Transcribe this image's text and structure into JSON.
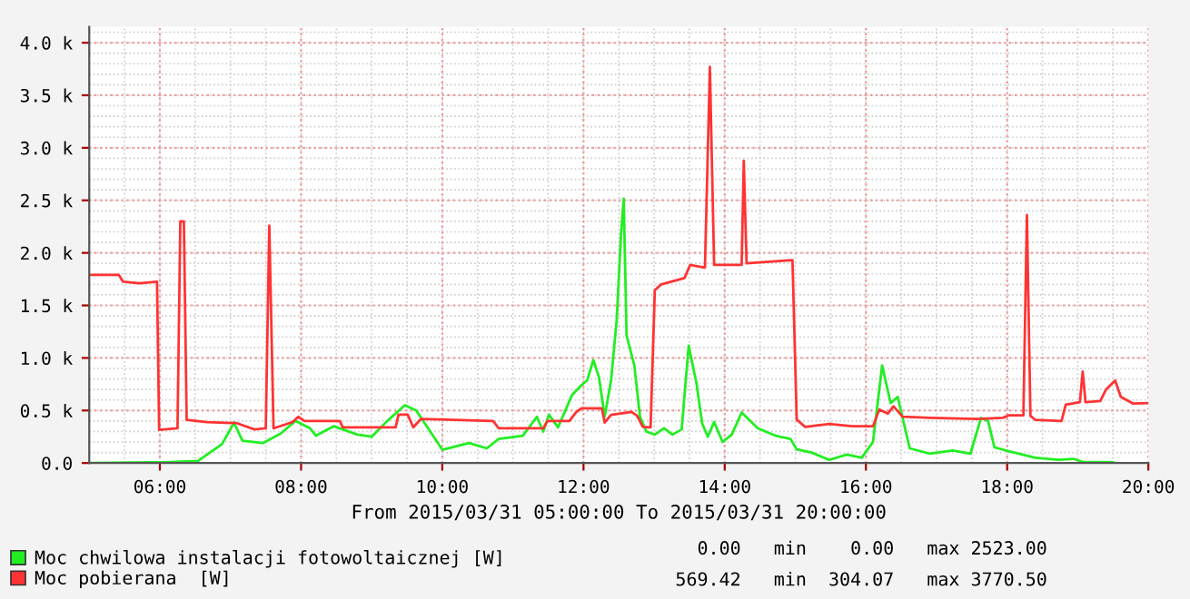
{
  "chart_data": {
    "type": "line",
    "xlabel": "From 2015/03/31 05:00:00 To 2015/03/31 20:00:00",
    "xlim": [
      5,
      20
    ],
    "xticks": [
      {
        "value": 6,
        "label": "06:00"
      },
      {
        "value": 8,
        "label": "08:00"
      },
      {
        "value": 10,
        "label": "10:00"
      },
      {
        "value": 12,
        "label": "12:00"
      },
      {
        "value": 14,
        "label": "14:00"
      },
      {
        "value": 16,
        "label": "16:00"
      },
      {
        "value": 18,
        "label": "18:00"
      },
      {
        "value": 20,
        "label": "20:00"
      }
    ],
    "ylim": [
      0,
      4150
    ],
    "yticks": [
      {
        "value": 0,
        "label": "0.0"
      },
      {
        "value": 500,
        "label": "0.5 k"
      },
      {
        "value": 1000,
        "label": "1.0 k"
      },
      {
        "value": 1500,
        "label": "1.5 k"
      },
      {
        "value": 2000,
        "label": "2.0 k"
      },
      {
        "value": 2500,
        "label": "2.5 k"
      },
      {
        "value": 3000,
        "label": "3.0 k"
      },
      {
        "value": 3500,
        "label": "3.5 k"
      },
      {
        "value": 4000,
        "label": "4.0 k"
      }
    ],
    "grid": true,
    "legend": "bottom left",
    "marker": "none",
    "line_style": "solid",
    "annotations": [
      "0.00   min    0.00   max 2523.00",
      "569.42   min  304.07   max 3770.50"
    ],
    "series": [
      {
        "name": "Moc chwilowa instalacji fotowoltaicznej [W]",
        "color": "#22ee22",
        "x": [
          5.0,
          6.13,
          6.54,
          6.88,
          7.05,
          7.17,
          7.46,
          7.71,
          7.92,
          8.13,
          8.21,
          8.46,
          8.59,
          8.8,
          9.0,
          9.22,
          9.47,
          9.63,
          9.8,
          10.0,
          10.38,
          10.63,
          10.8,
          11.14,
          11.34,
          11.43,
          11.51,
          11.64,
          11.84,
          11.97,
          12.05,
          12.14,
          12.22,
          12.3,
          12.39,
          12.47,
          12.53,
          12.57,
          12.61,
          12.72,
          12.8,
          12.89,
          13.01,
          13.14,
          13.26,
          13.39,
          13.49,
          13.6,
          13.68,
          13.76,
          13.85,
          13.97,
          14.1,
          14.24,
          14.47,
          14.72,
          14.93,
          15.02,
          15.23,
          15.48,
          15.73,
          15.94,
          16.1,
          16.23,
          16.35,
          16.45,
          16.62,
          16.9,
          17.23,
          17.48,
          17.63,
          17.73,
          17.82,
          17.98,
          18.4,
          18.73,
          18.94,
          19.07,
          19.48,
          19.53
        ],
        "values": [
          0,
          10,
          20,
          180,
          384,
          212,
          190,
          280,
          400,
          330,
          260,
          350,
          320,
          270,
          250,
          400,
          550,
          500,
          330,
          126,
          190,
          140,
          230,
          260,
          440,
          300,
          460,
          340,
          650,
          740,
          785,
          980,
          814,
          441,
          785,
          1360,
          2160,
          2516,
          1215,
          928,
          441,
          300,
          270,
          330,
          270,
          320,
          1117,
          760,
          380,
          250,
          390,
          200,
          270,
          481,
          330,
          260,
          230,
          130,
          100,
          30,
          80,
          50,
          200,
          928,
          570,
          630,
          140,
          90,
          120,
          90,
          430,
          400,
          150,
          120,
          50,
          30,
          40,
          10,
          10,
          0
        ]
      },
      {
        "name": "Moc pobierana  [W]",
        "color": "#ff3333",
        "x": [
          5.0,
          5.42,
          5.48,
          5.71,
          5.96,
          5.99,
          6.25,
          6.29,
          6.34,
          6.38,
          6.67,
          7.09,
          7.34,
          7.5,
          7.55,
          7.61,
          7.88,
          7.96,
          8.05,
          8.55,
          8.59,
          9.34,
          9.38,
          9.51,
          9.59,
          9.7,
          10.72,
          10.8,
          11.43,
          11.49,
          11.8,
          11.89,
          11.97,
          12.26,
          12.3,
          12.39,
          12.68,
          12.76,
          12.84,
          12.95,
          13.01,
          13.1,
          13.43,
          13.51,
          13.72,
          13.79,
          13.85,
          14.24,
          14.27,
          14.31,
          14.72,
          14.96,
          15.02,
          15.14,
          15.48,
          15.81,
          16.1,
          16.19,
          16.31,
          16.39,
          16.52,
          16.9,
          17.57,
          17.94,
          18.02,
          18.23,
          18.28,
          18.33,
          18.4,
          18.77,
          18.83,
          19.03,
          19.07,
          19.11,
          19.32,
          19.4,
          19.53,
          19.61,
          19.78,
          20.0
        ],
        "values": [
          1790,
          1790,
          1725,
          1710,
          1725,
          315,
          330,
          2300,
          2300,
          410,
          390,
          380,
          320,
          330,
          2260,
          330,
          390,
          440,
          400,
          400,
          340,
          340,
          460,
          460,
          340,
          420,
          400,
          330,
          330,
          400,
          400,
          480,
          520,
          520,
          384,
          458,
          487,
          450,
          344,
          340,
          1645,
          1700,
          1760,
          1885,
          1860,
          3770,
          1885,
          1885,
          2877,
          1900,
          1920,
          1930,
          413,
          344,
          372,
          350,
          350,
          510,
          470,
          540,
          441,
          430,
          420,
          430,
          453,
          453,
          2360,
          450,
          410,
          400,
          556,
          580,
          871,
          580,
          590,
          700,
          785,
          630,
          567,
          570
        ]
      }
    ]
  }
}
